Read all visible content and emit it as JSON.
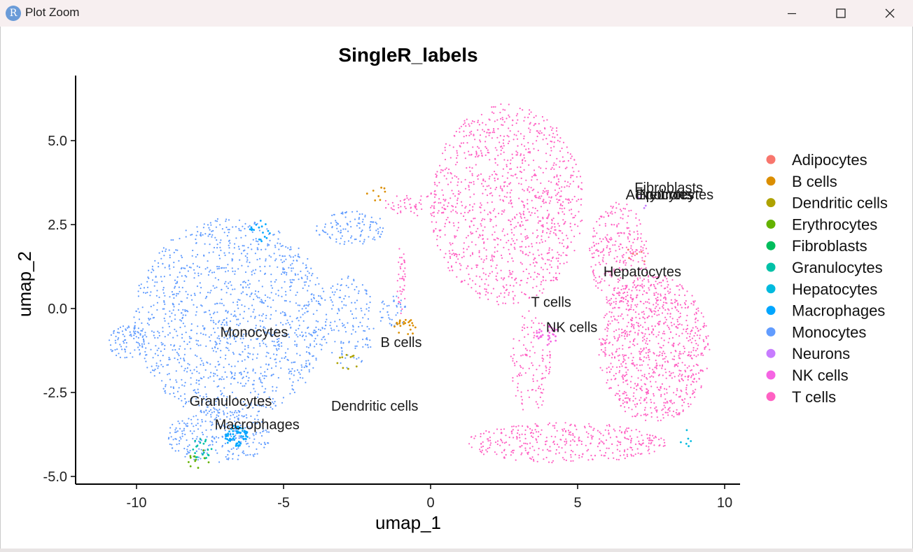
{
  "window": {
    "title": "Plot Zoom",
    "icon": "R",
    "controls": [
      "minimize-icon",
      "maximize-icon",
      "close-icon"
    ]
  },
  "chart_data": {
    "type": "scatter",
    "title": "SingleR_labels",
    "xlabel": "umap_1",
    "ylabel": "umap_2",
    "xlim": [
      -12.2,
      10.5
    ],
    "ylim": [
      -5.3,
      6.9
    ],
    "x_ticks": [
      -10,
      -5,
      0,
      5,
      10
    ],
    "x_tick_labels": [
      "-10",
      "-5",
      "0",
      "5",
      "10"
    ],
    "y_ticks": [
      -5,
      -2.5,
      0,
      2.5,
      5
    ],
    "y_tick_labels": [
      "-5.0",
      "-2.5",
      "0.0",
      "2.5",
      "5.0"
    ],
    "grid": false,
    "legend_position": "right",
    "series": [
      {
        "name": "Adipocytes",
        "color": "#F8766D"
      },
      {
        "name": "B cells",
        "color": "#DB8E00"
      },
      {
        "name": "Dendritic cells",
        "color": "#AEA200"
      },
      {
        "name": "Erythrocytes",
        "color": "#64B200"
      },
      {
        "name": "Fibroblasts",
        "color": "#00BD5C"
      },
      {
        "name": "Granulocytes",
        "color": "#00C1A7"
      },
      {
        "name": "Hepatocytes",
        "color": "#00BADE"
      },
      {
        "name": "Macrophages",
        "color": "#00A6FF"
      },
      {
        "name": "Monocytes",
        "color": "#619CFF"
      },
      {
        "name": "Neurons",
        "color": "#C77CFF"
      },
      {
        "name": "NK cells",
        "color": "#F564E3"
      },
      {
        "name": "T cells",
        "color": "#FF61C3"
      }
    ],
    "cluster_labels": [
      {
        "text": "Fibroblasts",
        "x": 8.1,
        "y": 3.6
      },
      {
        "text": "Erythrocytes",
        "x": 8.3,
        "y": 3.4
      },
      {
        "text": "Neurons",
        "x": 8.0,
        "y": 3.4
      },
      {
        "text": "Adipocytes",
        "x": 7.8,
        "y": 3.4
      },
      {
        "text": "Hepatocytes",
        "x": 7.2,
        "y": 1.1
      },
      {
        "text": "T cells",
        "x": 4.1,
        "y": 0.2
      },
      {
        "text": "NK cells",
        "x": 4.8,
        "y": -0.55
      },
      {
        "text": "Monocytes",
        "x": -6.0,
        "y": -0.7
      },
      {
        "text": "B cells",
        "x": -1.0,
        "y": -1.0
      },
      {
        "text": "Granulocytes",
        "x": -6.8,
        "y": -2.75
      },
      {
        "text": "Dendritic cells",
        "x": -1.9,
        "y": -2.9
      },
      {
        "text": "Macrophages",
        "x": -5.9,
        "y": -3.45
      }
    ],
    "point_regions": [
      {
        "label": "Monocytes",
        "cx": -6.8,
        "cy": -0.3,
        "rx": 3.3,
        "ry": 3.0,
        "n": 1300
      },
      {
        "label": "Monocytes",
        "cx": -7.2,
        "cy": -3.8,
        "rx": 1.8,
        "ry": 0.8,
        "n": 260
      },
      {
        "label": "Monocytes",
        "cx": -10.3,
        "cy": -1.0,
        "rx": 0.7,
        "ry": 0.5,
        "n": 80
      },
      {
        "label": "Monocytes",
        "cx": -2.7,
        "cy": 2.4,
        "rx": 1.2,
        "ry": 0.5,
        "n": 110
      },
      {
        "label": "Monocytes",
        "cx": -2.8,
        "cy": -0.4,
        "rx": 0.9,
        "ry": 1.4,
        "n": 140
      },
      {
        "label": "Monocytes",
        "cx": -1.3,
        "cy": -0.1,
        "rx": 0.5,
        "ry": 0.5,
        "n": 40
      },
      {
        "label": "T cells",
        "cx": 2.6,
        "cy": 3.1,
        "rx": 2.6,
        "ry": 3.0,
        "n": 1100
      },
      {
        "label": "T cells",
        "cx": 7.6,
        "cy": -1.2,
        "rx": 1.9,
        "ry": 2.2,
        "n": 900
      },
      {
        "label": "T cells",
        "cx": 4.6,
        "cy": -4.0,
        "rx": 3.4,
        "ry": 0.6,
        "n": 380
      },
      {
        "label": "T cells",
        "cx": 6.4,
        "cy": 1.6,
        "rx": 1.0,
        "ry": 1.6,
        "n": 280
      },
      {
        "label": "T cells",
        "cx": -0.3,
        "cy": 3.1,
        "rx": 1.3,
        "ry": 0.35,
        "n": 70
      },
      {
        "label": "T cells",
        "cx": 3.4,
        "cy": -1.6,
        "rx": 0.7,
        "ry": 1.6,
        "n": 120
      },
      {
        "label": "T cells",
        "cx": -1.0,
        "cy": 0.8,
        "rx": 0.15,
        "ry": 1.1,
        "n": 40
      }
    ],
    "accent_points": [
      {
        "label": "Macrophages",
        "x": -6.6,
        "y": -3.8,
        "n": 70
      },
      {
        "label": "Macrophages",
        "x": -5.8,
        "y": 2.3,
        "n": 20
      },
      {
        "label": "Granulocytes",
        "x": -7.8,
        "y": -4.2,
        "n": 20
      },
      {
        "label": "Erythrocytes",
        "x": -7.9,
        "y": -4.5,
        "n": 12
      },
      {
        "label": "B cells",
        "x": -0.9,
        "y": -0.6,
        "n": 22
      },
      {
        "label": "B cells",
        "x": -1.9,
        "y": 3.4,
        "n": 8
      },
      {
        "label": "Dendritic cells",
        "x": -2.8,
        "y": -1.6,
        "n": 10
      },
      {
        "label": "NK cells",
        "x": 4.0,
        "y": -0.8,
        "n": 30
      },
      {
        "label": "Adipocytes",
        "x": 7.0,
        "y": 1.6,
        "n": 6
      },
      {
        "label": "Neurons",
        "x": 7.1,
        "y": 3.2,
        "n": 5
      },
      {
        "label": "Hepatocytes",
        "x": 8.8,
        "y": -3.9,
        "n": 6
      }
    ]
  }
}
